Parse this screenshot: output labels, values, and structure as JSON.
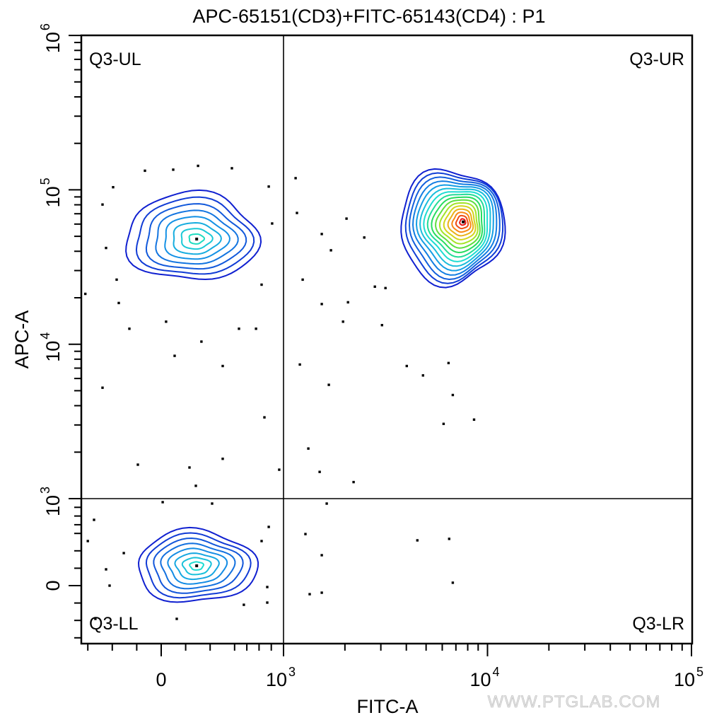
{
  "chart_data": {
    "type": "contour-scatter",
    "title": "APC-65151(CD3)+FITC-65143(CD4) : P1",
    "xlabel": "FITC-A",
    "ylabel": "APC-A",
    "x_scale": "biexponential",
    "y_scale": "biexponential",
    "xlim": [
      -650,
      100000
    ],
    "ylim": [
      -700,
      1000000
    ],
    "x_tick_labels": [
      {
        "value": 0,
        "label": "0"
      },
      {
        "value": 1000,
        "base": "10",
        "exp": "3"
      },
      {
        "value": 10000,
        "base": "10",
        "exp": "4"
      },
      {
        "value": 100000,
        "base": "10",
        "exp": "5"
      }
    ],
    "y_tick_labels": [
      {
        "value": 0,
        "label": "0"
      },
      {
        "value": 1000,
        "base": "10",
        "exp": "3"
      },
      {
        "value": 10000,
        "base": "10",
        "exp": "4"
      },
      {
        "value": 100000,
        "base": "10",
        "exp": "5"
      },
      {
        "value": 1000000,
        "base": "10",
        "exp": "6"
      }
    ],
    "gates": {
      "x": 1000,
      "y": 1000
    },
    "quadrant_labels": {
      "ul": "Q3-UL",
      "ur": "Q3-UR",
      "ll": "Q3-LL",
      "lr": "Q3-LR"
    },
    "populations": [
      {
        "name": "UL",
        "peak": [
          290,
          48000
        ],
        "fitc_range": [
          -290,
          790
        ],
        "apc_range": [
          25700,
          95000
        ],
        "levels": 8,
        "max_color_level": 0.42
      },
      {
        "name": "LL",
        "peak": [
          290,
          228
        ],
        "fitc_range": [
          -200,
          775
        ],
        "apc_range": [
          -195,
          634
        ],
        "levels": 8,
        "max_color_level": 0.4
      },
      {
        "name": "UR",
        "peak": [
          7600,
          62000
        ],
        "fitc_range": [
          3710,
          12000
        ],
        "apc_range": [
          24800,
          136000
        ],
        "levels": 16,
        "max_color_level": 1.0
      }
    ],
    "outlier_points": [
      [
        1146,
        119000
      ],
      [
        1164,
        70800
      ],
      [
        2037,
        65100
      ],
      [
        1540,
        51700
      ],
      [
        1709,
        40600
      ],
      [
        2488,
        49100
      ],
      [
        2805,
        23600
      ],
      [
        2070,
        18700
      ],
      [
        3162,
        23100
      ],
      [
        1540,
        18200
      ],
      [
        1241,
        26200
      ],
      [
        1958,
        14000
      ],
      [
        3040,
        13300
      ],
      [
        4018,
        7230
      ],
      [
        4830,
        6280
      ],
      [
        1668,
        5460
      ],
      [
        1202,
        7390
      ],
      [
        6440,
        7550
      ],
      [
        6760,
        4690
      ],
      [
        6090,
        3050
      ],
      [
        8590,
        3250
      ],
      [
        1323,
        2110
      ],
      [
        1504,
        1490
      ],
      [
        2206,
        1280
      ],
      [
        4530,
        520
      ],
      [
        6490,
        537
      ],
      [
        6760,
        33
      ],
      [
        1281,
        593
      ],
      [
        1628,
        943
      ],
      [
        1540,
        350
      ],
      [
        1344,
        -98
      ],
      [
        1540,
        -81
      ],
      [
        -133,
        133000
      ],
      [
        98,
        135000
      ],
      [
        301,
        143000
      ],
      [
        578,
        138000
      ],
      [
        -393,
        104000
      ],
      [
        -480,
        80300
      ],
      [
        879,
        105000
      ],
      [
        907,
        60500
      ],
      [
        -451,
        42000
      ],
      [
        -364,
        26200
      ],
      [
        -347,
        18500
      ],
      [
        -260,
        12600
      ],
      [
        40,
        14000
      ],
      [
        110,
        8410
      ],
      [
        329,
        10400
      ],
      [
        503,
        7230
      ],
      [
        636,
        12600
      ],
      [
        775,
        12600
      ],
      [
        821,
        24300
      ],
      [
        -480,
        5230
      ],
      [
        844,
        3360
      ],
      [
        -191,
        1660
      ],
      [
        231,
        1590
      ],
      [
        503,
        1810
      ],
      [
        965,
        1540
      ],
      [
        283,
        1210
      ],
      [
        -620,
        21200
      ],
      [
        -549,
        756
      ],
      [
        -600,
        512
      ],
      [
        -451,
        187
      ],
      [
        -422,
        0
      ],
      [
        -306,
        374
      ],
      [
        12,
        959
      ],
      [
        416,
        943
      ],
      [
        879,
        675
      ],
      [
        821,
        512
      ],
      [
        867,
        -16
      ],
      [
        867,
        -195
      ],
      [
        676,
        -220
      ],
      [
        127,
        -382
      ],
      [
        -538,
        -382
      ]
    ]
  },
  "watermark": "WWW.PTGLAB.COM"
}
